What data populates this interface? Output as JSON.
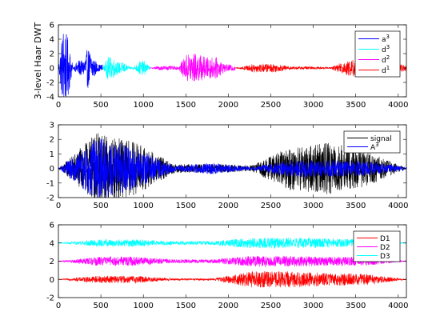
{
  "figure": {
    "background": "#ffffff"
  },
  "chart_data": [
    {
      "type": "line",
      "ylabel": "3-level Haar DWT",
      "xlim": [
        0,
        4096
      ],
      "ylim": [
        -4,
        6
      ],
      "xticks": [
        0,
        500,
        1000,
        1500,
        2000,
        2500,
        3000,
        3500,
        4000
      ],
      "yticks": [
        -4,
        -2,
        0,
        2,
        4,
        6
      ],
      "legend": {
        "position": "top-right"
      },
      "series": [
        {
          "name": "a³",
          "label": "a",
          "sup": "3",
          "color": "#0000ff",
          "x_range": [
            0,
            520
          ],
          "values": [
            0,
            6,
            -4,
            0,
            1.2,
            -1.0,
            2.8,
            -1.8,
            0.5,
            -0.5
          ]
        },
        {
          "name": "d³",
          "label": "d",
          "sup": "3",
          "color": "#00ffff",
          "x_range": [
            520,
            1080
          ],
          "values": [
            0,
            1.6,
            -1.4,
            0.8,
            -0.8,
            0.2,
            -0.2,
            1.0,
            -1.0,
            0.1
          ]
        },
        {
          "name": "d²",
          "label": "d",
          "sup": "2",
          "color": "#ff00ff",
          "x_range": [
            1080,
            2080
          ],
          "values": [
            0,
            0.3,
            -0.3,
            0.2,
            2.2,
            -2.0,
            1.5,
            -1.5,
            0.5,
            -0.4
          ]
        },
        {
          "name": "d¹",
          "label": "d",
          "sup": "1",
          "color": "#ff0000",
          "x_range": [
            2080,
            4096
          ],
          "values": [
            0,
            0.6,
            -0.6,
            0.2,
            -0.2,
            0.1,
            1.2,
            -1.0,
            0.6,
            -0.5
          ]
        }
      ]
    },
    {
      "type": "line",
      "xlim": [
        0,
        4096
      ],
      "ylim": [
        -2,
        3
      ],
      "xticks": [
        0,
        500,
        1000,
        1500,
        2000,
        2500,
        3000,
        3500,
        4000
      ],
      "yticks": [
        -2,
        -1,
        0,
        1,
        2,
        3
      ],
      "legend": {
        "position": "top-right"
      },
      "series": [
        {
          "name": "signal",
          "label": "signal",
          "sup": "",
          "color": "#000000",
          "x_range": [
            0,
            4096
          ],
          "values": [
            0,
            2.5,
            -1.8,
            -0.3,
            0.3,
            -0.2,
            1.5,
            -1.8,
            1.2,
            0.0
          ]
        },
        {
          "name": "A³",
          "label": "A",
          "sup": "3",
          "color": "#0000ff",
          "x_range": [
            0,
            4096
          ],
          "values": [
            0,
            2.2,
            -1.4,
            -0.2,
            0.4,
            -0.1,
            0.6,
            -0.6,
            0.5,
            -0.1
          ]
        }
      ]
    },
    {
      "type": "line",
      "xlim": [
        0,
        4096
      ],
      "ylim": [
        -2,
        6
      ],
      "xticks": [
        0,
        500,
        1000,
        1500,
        2000,
        2500,
        3000,
        3500,
        4000
      ],
      "yticks": [
        -2,
        0,
        2,
        4,
        6
      ],
      "legend": {
        "position": "top-right"
      },
      "series": [
        {
          "name": "D1",
          "label": "D1",
          "sup": "",
          "color": "#ff0000",
          "x_range": [
            0,
            4096
          ],
          "offset": 0,
          "values": [
            0,
            0.4,
            -0.4,
            0.1,
            -0.1,
            0.9,
            -0.9,
            0.7,
            -0.6,
            0.0
          ]
        },
        {
          "name": "D2",
          "label": "D2",
          "sup": "",
          "color": "#ff00ff",
          "x_range": [
            0,
            4096
          ],
          "offset": 2,
          "values": [
            2,
            2.5,
            1.5,
            2.2,
            1.8,
            2.6,
            1.4,
            2.5,
            1.5,
            2.0
          ]
        },
        {
          "name": "D3",
          "label": "D3",
          "sup": "",
          "color": "#00ffff",
          "x_range": [
            0,
            4096
          ],
          "offset": 4,
          "values": [
            4,
            4.4,
            3.6,
            4.2,
            3.8,
            4.6,
            3.4,
            4.5,
            3.6,
            4.0
          ]
        }
      ]
    }
  ]
}
